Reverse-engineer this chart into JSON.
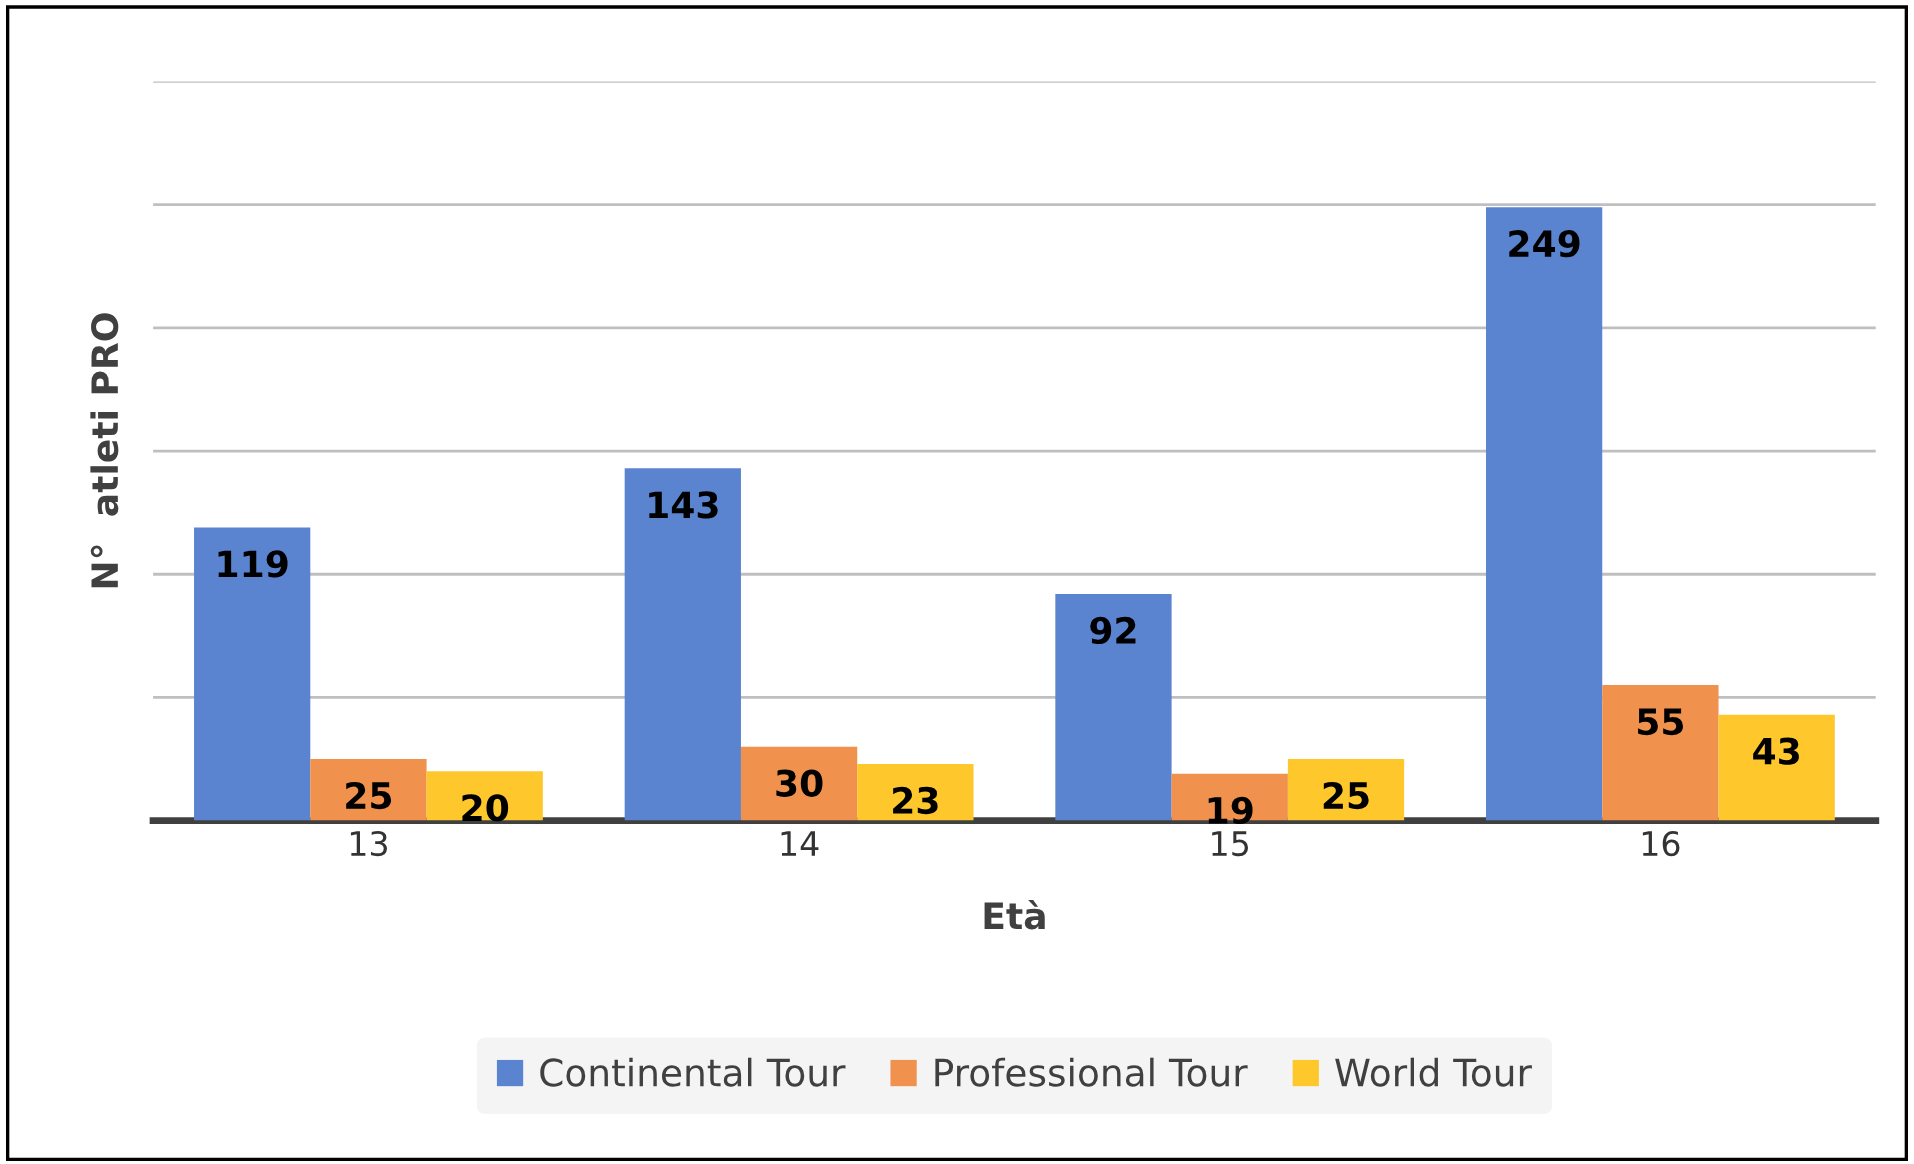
{
  "chart_data": {
    "type": "bar",
    "xlabel": "Età",
    "ylabel": "N°  atleti PRO",
    "categories": [
      "13",
      "14",
      "15",
      "16"
    ],
    "series": [
      {
        "name": "Continental Tour",
        "color": "#5b84d0",
        "values": [
          119,
          143,
          92,
          249
        ]
      },
      {
        "name": "Professional Tour",
        "color": "#f0914e",
        "values": [
          25,
          30,
          19,
          55
        ]
      },
      {
        "name": "World Tour",
        "color": "#fec72b",
        "values": [
          20,
          23,
          25,
          43
        ]
      }
    ],
    "ylim": [
      0,
      300
    ],
    "yticks": [
      {
        "value": 0,
        "label": null
      },
      {
        "value": 50,
        "label": null
      },
      {
        "value": 100,
        "label": null
      },
      {
        "value": 150,
        "label": null
      },
      {
        "value": 200,
        "label": null
      },
      {
        "value": 250,
        "label": null
      },
      {
        "value": 300,
        "label": null
      }
    ],
    "tick_labels": "x",
    "grid": "y",
    "legend": "bottom",
    "data_labels": true
  }
}
